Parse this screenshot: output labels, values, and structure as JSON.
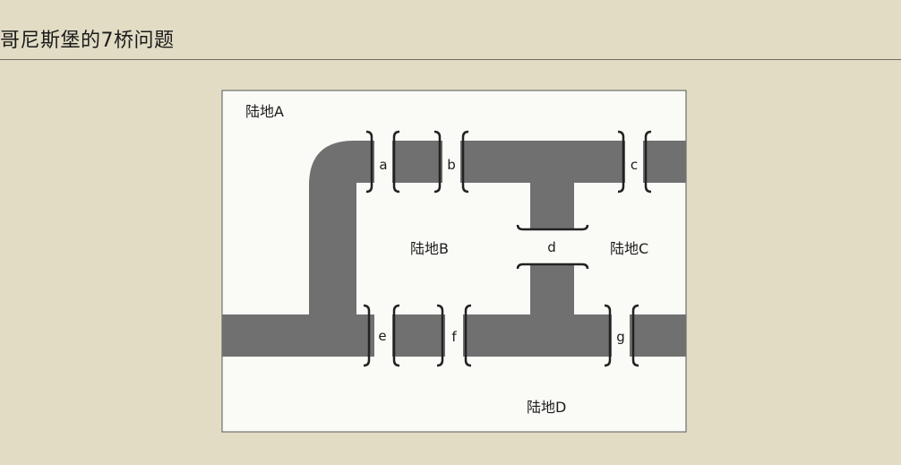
{
  "header": {
    "title": "哥尼斯堡的7桥问题"
  },
  "diagram": {
    "lands": {
      "a": "陆地A",
      "b": "陆地B",
      "c": "陆地C",
      "d": "陆地D"
    },
    "bridges": {
      "a": "a",
      "b": "b",
      "c": "c",
      "d": "d",
      "e": "e",
      "f": "f",
      "g": "g"
    }
  },
  "colors": {
    "background": "#e2dcc5",
    "panel": "#fafaf7",
    "river": "#707070",
    "bracket": "#222222"
  }
}
